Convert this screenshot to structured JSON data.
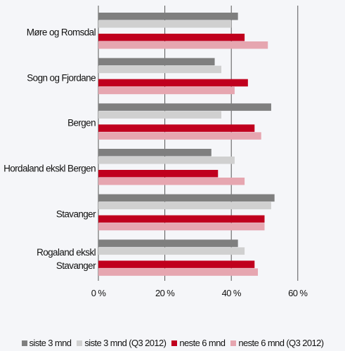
{
  "chart_data": {
    "type": "hbar",
    "categories": [
      "Møre og Romsdal",
      "Sogn og Fjordane",
      "Bergen",
      "Hordaland ekskl Bergen",
      "Stavanger",
      "Rogaland ekskl Stavanger"
    ],
    "series": [
      {
        "name": "siste 3 mnd",
        "color": "#7f7f7f",
        "values": [
          42,
          35,
          52,
          34,
          53,
          42
        ]
      },
      {
        "name": "siste 3 mnd (Q3 2012)",
        "color": "#d0d0d0",
        "values": [
          40,
          37,
          37,
          41,
          52,
          44
        ]
      },
      {
        "name": "neste 6 mnd",
        "color": "#c0001e",
        "values": [
          44,
          45,
          47,
          36,
          50,
          47
        ]
      },
      {
        "name": "neste 6 mnd (Q3 2012)",
        "color": "#e6a6b0",
        "values": [
          51,
          41,
          49,
          44,
          50,
          48
        ]
      }
    ],
    "xlim": [
      0,
      74
    ],
    "xticks": [
      {
        "value": 0,
        "label": "0 %"
      },
      {
        "value": 20,
        "label": "20 %"
      },
      {
        "value": 40,
        "label": "40 %"
      },
      {
        "value": 60,
        "label": "60 %"
      }
    ],
    "grid": true
  }
}
